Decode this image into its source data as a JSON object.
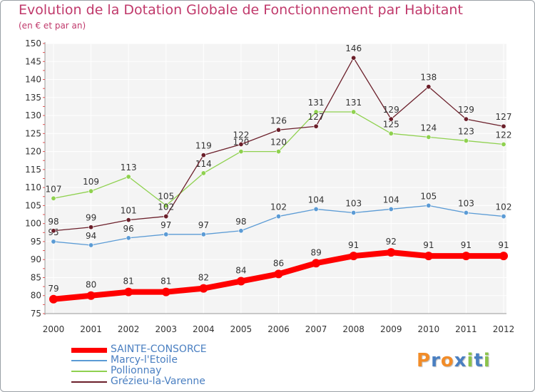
{
  "header": {
    "title": "Evolution de la Dotation Globale de Fonctionnement par Habitant",
    "subtitle": "(en € et par an)"
  },
  "logo": {
    "text": "Proxiti",
    "letters": [
      "P",
      "r",
      "o",
      "x",
      "i",
      "t",
      "i"
    ],
    "colors": [
      "#f28c28",
      "#4a7fc1",
      "#f28c28",
      "#4a7fc1",
      "#8bc34a",
      "#4a7fc1",
      "#8bc34a"
    ]
  },
  "chart_data": {
    "type": "line",
    "title": "Evolution de la Dotation Globale de Fonctionnement par Habitant",
    "subtitle": "(en € et par an)",
    "x": [
      "2000",
      "2001",
      "2002",
      "2003",
      "2004",
      "2005",
      "2006",
      "2007",
      "2008",
      "2009",
      "2010",
      "2011",
      "2012"
    ],
    "ylim": [
      75,
      150
    ],
    "yticks": [
      75,
      80,
      85,
      90,
      95,
      100,
      105,
      110,
      115,
      120,
      125,
      130,
      135,
      140,
      145,
      150
    ],
    "grid": true,
    "legend_position": "bottom-left",
    "series": [
      {
        "name": "SAINTE-CONSORCE",
        "color": "#ff0000",
        "values": [
          79,
          80,
          81,
          81,
          82,
          84,
          86,
          89,
          91,
          92,
          91,
          91,
          91
        ]
      },
      {
        "name": "Marcy-l'Etoile",
        "color": "#5b9bd5",
        "values": [
          95,
          94,
          96,
          97,
          97,
          98,
          102,
          104,
          103,
          104,
          105,
          103,
          102
        ]
      },
      {
        "name": "Pollionnay",
        "color": "#8fd14f",
        "values": [
          107,
          109,
          113,
          105,
          114,
          120,
          120,
          131,
          131,
          125,
          124,
          123,
          122
        ]
      },
      {
        "name": "Grézieu-la-Varenne",
        "color": "#6b1f2a",
        "values": [
          98,
          99,
          101,
          102,
          119,
          122,
          126,
          127,
          146,
          129,
          138,
          129,
          127
        ]
      }
    ]
  }
}
